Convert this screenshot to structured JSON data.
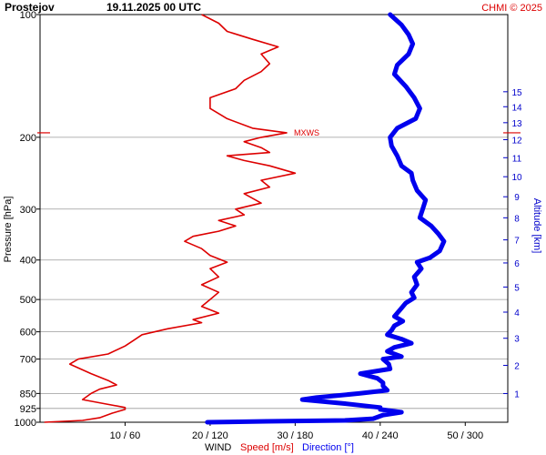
{
  "header": {
    "station": "Prostejov",
    "datetime": "19.11.2025 00 UTC",
    "credit": "CHMI © 2025"
  },
  "colors": {
    "speed": "#dd0000",
    "direction": "#0000ee",
    "altitude_axis": "#0000cc",
    "grid": "#9a9a9a",
    "mxws": "#dd0000",
    "credit": "#dd0000"
  },
  "footer": {
    "wind_label": "WIND",
    "speed_label": "Speed [m/s]",
    "direction_label": "Direction [°]"
  },
  "chart_data": {
    "type": "line",
    "ylabel": "Pressure [hPa]",
    "y2label": "Altitude [km]",
    "pressure_scale": "log",
    "ylim": [
      1000,
      100
    ],
    "pressure_ticks": [
      100,
      200,
      300,
      400,
      500,
      600,
      700,
      850,
      925,
      1000
    ],
    "x_ticks": [
      "10 / 60",
      "20 / 120",
      "30 / 180",
      "40 / 240",
      "50 / 300"
    ],
    "speed_xlim": [
      0,
      55
    ],
    "direction_xlim": [
      0,
      330
    ],
    "altitude_ticks": [
      1,
      2,
      3,
      4,
      5,
      6,
      7,
      8,
      9,
      10,
      11,
      12,
      13,
      14,
      15
    ],
    "max_wind_marker": {
      "label": "MXWS",
      "pressure": 195,
      "speed": 29
    },
    "series": [
      {
        "name": "Speed [m/s]",
        "unit": "m/s",
        "points": [
          [
            1000,
            0.5
          ],
          [
            990,
            5
          ],
          [
            975,
            7
          ],
          [
            950,
            8.5
          ],
          [
            930,
            10
          ],
          [
            920,
            10
          ],
          [
            900,
            7.5
          ],
          [
            880,
            5
          ],
          [
            850,
            6
          ],
          [
            830,
            7
          ],
          [
            810,
            9
          ],
          [
            790,
            8
          ],
          [
            760,
            6
          ],
          [
            720,
            3.5
          ],
          [
            700,
            4.5
          ],
          [
            680,
            8
          ],
          [
            650,
            10
          ],
          [
            630,
            11
          ],
          [
            610,
            12
          ],
          [
            590,
            15
          ],
          [
            570,
            19
          ],
          [
            560,
            18
          ],
          [
            540,
            21
          ],
          [
            520,
            19
          ],
          [
            500,
            20
          ],
          [
            480,
            21
          ],
          [
            460,
            19
          ],
          [
            440,
            21
          ],
          [
            420,
            20
          ],
          [
            405,
            22
          ],
          [
            390,
            20
          ],
          [
            375,
            19
          ],
          [
            360,
            17
          ],
          [
            350,
            18
          ],
          [
            340,
            21
          ],
          [
            330,
            23
          ],
          [
            320,
            21
          ],
          [
            310,
            24
          ],
          [
            300,
            23
          ],
          [
            290,
            26
          ],
          [
            275,
            24
          ],
          [
            265,
            27
          ],
          [
            255,
            26
          ],
          [
            245,
            30
          ],
          [
            235,
            27
          ],
          [
            228,
            24
          ],
          [
            222,
            22
          ],
          [
            218,
            27
          ],
          [
            212,
            26
          ],
          [
            205,
            24
          ],
          [
            200,
            26
          ],
          [
            195,
            29
          ],
          [
            190,
            25
          ],
          [
            180,
            22
          ],
          [
            170,
            20
          ],
          [
            160,
            20
          ],
          [
            152,
            23
          ],
          [
            145,
            24
          ],
          [
            138,
            26
          ],
          [
            132,
            27
          ],
          [
            125,
            26
          ],
          [
            120,
            28
          ],
          [
            115,
            25
          ],
          [
            110,
            22
          ],
          [
            105,
            21
          ],
          [
            100,
            19
          ]
        ]
      },
      {
        "name": "Direction [°]",
        "unit": "°",
        "points": [
          [
            1000,
            118
          ],
          [
            995,
            160
          ],
          [
            990,
            215
          ],
          [
            980,
            235
          ],
          [
            960,
            242
          ],
          [
            945,
            255
          ],
          [
            930,
            240
          ],
          [
            920,
            240
          ],
          [
            900,
            215
          ],
          [
            880,
            185
          ],
          [
            870,
            195
          ],
          [
            850,
            225
          ],
          [
            835,
            245
          ],
          [
            815,
            242
          ],
          [
            800,
            242
          ],
          [
            780,
            238
          ],
          [
            760,
            226
          ],
          [
            740,
            247
          ],
          [
            720,
            246
          ],
          [
            700,
            242
          ],
          [
            690,
            255
          ],
          [
            670,
            245
          ],
          [
            655,
            250
          ],
          [
            640,
            262
          ],
          [
            625,
            255
          ],
          [
            610,
            245
          ],
          [
            595,
            248
          ],
          [
            580,
            250
          ],
          [
            565,
            256
          ],
          [
            550,
            250
          ],
          [
            530,
            254
          ],
          [
            510,
            258
          ],
          [
            495,
            264
          ],
          [
            480,
            262
          ],
          [
            460,
            266
          ],
          [
            440,
            264
          ],
          [
            420,
            269
          ],
          [
            405,
            266
          ],
          [
            395,
            275
          ],
          [
            380,
            282
          ],
          [
            360,
            285
          ],
          [
            345,
            281
          ],
          [
            330,
            276
          ],
          [
            315,
            268
          ],
          [
            300,
            270
          ],
          [
            285,
            272
          ],
          [
            270,
            266
          ],
          [
            255,
            263
          ],
          [
            245,
            262
          ],
          [
            235,
            255
          ],
          [
            222,
            252
          ],
          [
            210,
            248
          ],
          [
            200,
            247
          ],
          [
            190,
            252
          ],
          [
            180,
            265
          ],
          [
            170,
            268
          ],
          [
            160,
            264
          ],
          [
            150,
            258
          ],
          [
            140,
            250
          ],
          [
            133,
            252
          ],
          [
            125,
            260
          ],
          [
            118,
            263
          ],
          [
            112,
            260
          ],
          [
            106,
            255
          ],
          [
            100,
            247
          ]
        ]
      }
    ]
  }
}
